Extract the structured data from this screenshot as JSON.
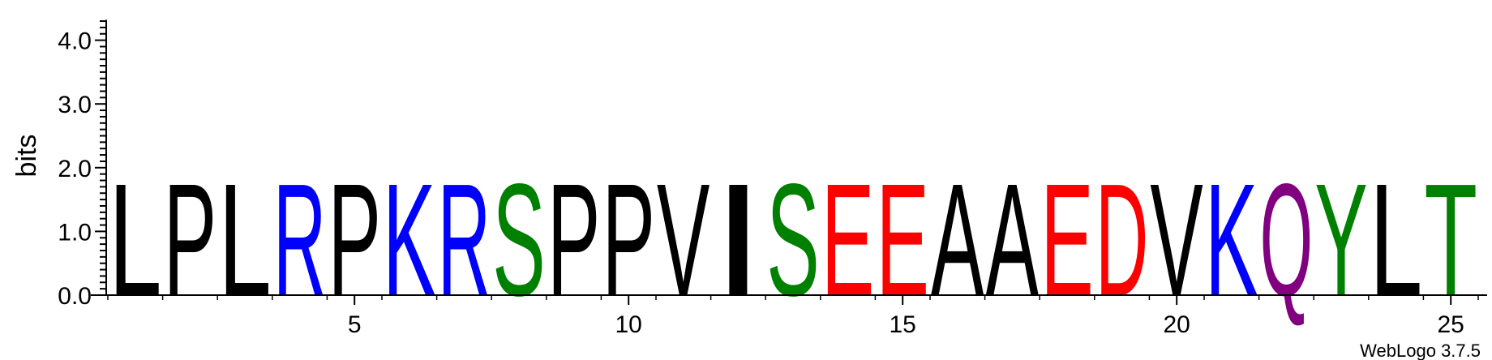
{
  "chart_data": {
    "type": "sequence-logo",
    "ylabel": "bits",
    "ylim": [
      0,
      4.32
    ],
    "yticks": [
      "0.0",
      "1.0",
      "2.0",
      "3.0",
      "4.0"
    ],
    "xticks": [
      "5",
      "10",
      "15",
      "20",
      "25"
    ],
    "xtick_positions": [
      5,
      10,
      15,
      20,
      25
    ],
    "positions": [
      1,
      2,
      3,
      4,
      5,
      6,
      7,
      8,
      9,
      10,
      11,
      12,
      13,
      14,
      15,
      16,
      17,
      18,
      19,
      20,
      21,
      22,
      23,
      24,
      25
    ],
    "letters": [
      "L",
      "P",
      "L",
      "R",
      "P",
      "K",
      "R",
      "S",
      "P",
      "P",
      "V",
      "I",
      "S",
      "E",
      "E",
      "A",
      "A",
      "E",
      "D",
      "V",
      "K",
      "Q",
      "Y",
      "L",
      "T"
    ],
    "values": [
      1.8,
      1.8,
      1.8,
      1.8,
      1.8,
      1.8,
      1.8,
      1.8,
      1.8,
      1.8,
      1.8,
      1.8,
      1.8,
      1.8,
      1.8,
      1.8,
      1.8,
      1.8,
      1.8,
      1.8,
      1.8,
      1.8,
      1.8,
      1.8,
      1.8
    ],
    "colors": {
      "hydrophobic": "#000000",
      "basic": "#0000ff",
      "polar": "#008000",
      "acidic": "#ff0000",
      "amide": "#800080"
    },
    "letter_colors": [
      "#000000",
      "#000000",
      "#000000",
      "#0000ff",
      "#000000",
      "#0000ff",
      "#0000ff",
      "#008000",
      "#000000",
      "#000000",
      "#000000",
      "#000000",
      "#008000",
      "#ff0000",
      "#ff0000",
      "#000000",
      "#000000",
      "#ff0000",
      "#ff0000",
      "#000000",
      "#0000ff",
      "#800080",
      "#008000",
      "#000000",
      "#008000"
    ]
  },
  "footer": {
    "credit": "WebLogo 3.7.5"
  }
}
